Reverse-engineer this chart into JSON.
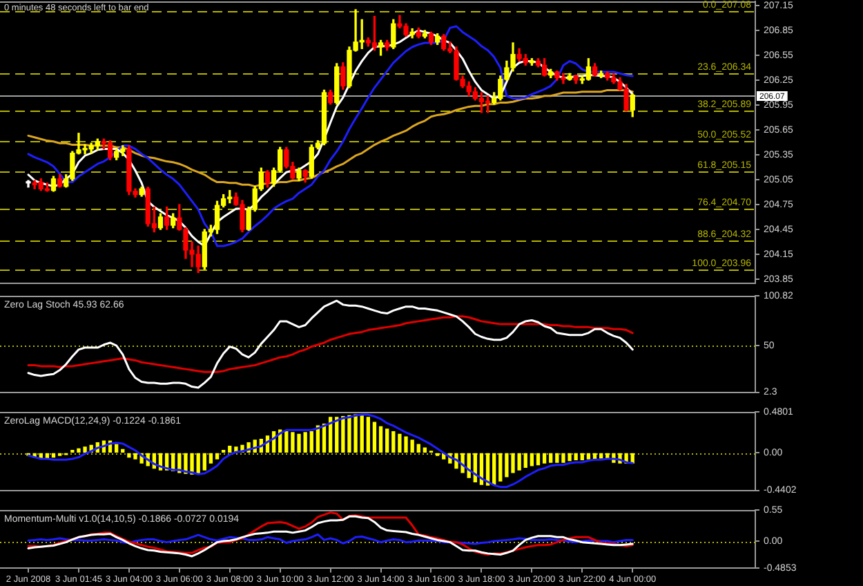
{
  "chart_data": [
    {
      "type": "candlestick",
      "annotations": [
        "0 minutes 48 seconds left to bar end"
      ],
      "categories": [
        null,
        null,
        null,
        null,
        null,
        null,
        null,
        null,
        null,
        null,
        null,
        null,
        null,
        null,
        null,
        null,
        null,
        null,
        null,
        null,
        null,
        null,
        null,
        null,
        null,
        null,
        null,
        null,
        null,
        null,
        null,
        null,
        null,
        null,
        null,
        null,
        null,
        null,
        null,
        null,
        null,
        null,
        null,
        null,
        null,
        null,
        null,
        null,
        null,
        null,
        null,
        null,
        null,
        null,
        null,
        null,
        null,
        null,
        null,
        null,
        null,
        null,
        null,
        null,
        null,
        null,
        null,
        null,
        null,
        null,
        null,
        null,
        null,
        null,
        null,
        null,
        null,
        null,
        null,
        null,
        null,
        null,
        null,
        null,
        null,
        null,
        null,
        null,
        null,
        null,
        null,
        null,
        null,
        null,
        null,
        null,
        null
      ],
      "ohlc": [
        [
          205.01,
          205.04,
          204.96,
          205.01
        ],
        [
          205.01,
          205.04,
          204.94,
          204.99
        ],
        [
          205.02,
          205.06,
          204.92,
          204.94
        ],
        [
          204.94,
          205.01,
          204.91,
          204.92
        ],
        [
          204.92,
          205.09,
          204.91,
          205.06
        ],
        [
          205.06,
          205.11,
          204.96,
          204.97
        ],
        [
          204.97,
          205.11,
          204.96,
          205.06
        ],
        [
          205.06,
          205.39,
          205.04,
          205.37
        ],
        [
          205.37,
          205.61,
          205.36,
          205.41
        ],
        [
          205.41,
          205.47,
          205.36,
          205.42
        ],
        [
          205.42,
          205.49,
          205.37,
          205.46
        ],
        [
          205.46,
          205.54,
          205.41,
          205.51
        ],
        [
          205.51,
          205.54,
          205.42,
          205.49
        ],
        [
          205.49,
          205.52,
          205.29,
          205.32
        ],
        [
          205.32,
          205.42,
          205.29,
          205.39
        ],
        [
          205.39,
          205.46,
          205.34,
          205.42
        ],
        [
          205.42,
          205.46,
          204.87,
          204.91
        ],
        [
          204.91,
          204.94,
          204.84,
          204.87
        ],
        [
          204.87,
          204.96,
          204.85,
          204.94
        ],
        [
          204.94,
          204.96,
          204.49,
          204.52
        ],
        [
          204.52,
          204.72,
          204.42,
          204.47
        ],
        [
          204.47,
          204.64,
          204.45,
          204.6
        ],
        [
          204.6,
          204.72,
          204.45,
          204.5
        ],
        [
          204.5,
          204.64,
          204.47,
          204.59
        ],
        [
          204.59,
          204.75,
          204.44,
          204.45
        ],
        [
          204.45,
          204.47,
          204.1,
          204.2
        ],
        [
          204.2,
          204.3,
          204.0,
          204.15
        ],
        [
          204.15,
          204.25,
          203.93,
          204.0
        ],
        [
          204.0,
          204.45,
          203.97,
          204.42
        ],
        [
          204.42,
          204.5,
          204.37,
          204.45
        ],
        [
          204.45,
          204.79,
          204.4,
          204.74
        ],
        [
          204.74,
          204.87,
          204.72,
          204.82
        ],
        [
          204.82,
          204.92,
          204.77,
          204.84
        ],
        [
          204.84,
          204.89,
          204.74,
          204.75
        ],
        [
          204.75,
          204.8,
          204.42,
          204.45
        ],
        [
          204.45,
          204.72,
          204.44,
          204.69
        ],
        [
          204.69,
          204.97,
          204.67,
          204.94
        ],
        [
          204.94,
          205.19,
          204.92,
          205.14
        ],
        [
          205.14,
          205.16,
          204.96,
          205.01
        ],
        [
          205.01,
          205.19,
          204.97,
          205.16
        ],
        [
          205.16,
          205.44,
          205.14,
          205.41
        ],
        [
          205.41,
          205.44,
          205.19,
          205.21
        ],
        [
          205.21,
          205.26,
          205.06,
          205.07
        ],
        [
          205.07,
          205.19,
          205.04,
          205.16
        ],
        [
          205.16,
          205.17,
          205.02,
          205.09
        ],
        [
          205.09,
          205.47,
          205.07,
          205.44
        ],
        [
          205.44,
          205.52,
          205.42,
          205.49
        ],
        [
          205.49,
          206.13,
          205.47,
          206.1
        ],
        [
          206.1,
          206.13,
          205.96,
          205.98
        ],
        [
          205.98,
          206.45,
          205.96,
          206.41
        ],
        [
          206.41,
          206.46,
          206.14,
          206.18
        ],
        [
          206.18,
          206.65,
          206.16,
          206.61
        ],
        [
          206.61,
          207.1,
          206.6,
          206.71
        ],
        [
          206.71,
          206.98,
          206.63,
          206.73
        ],
        [
          206.73,
          206.76,
          206.66,
          206.7
        ],
        [
          206.7,
          207.02,
          206.61,
          206.65
        ],
        [
          206.65,
          206.73,
          206.55,
          206.7
        ],
        [
          206.7,
          206.73,
          206.61,
          206.65
        ],
        [
          206.65,
          206.98,
          206.63,
          206.93
        ],
        [
          206.93,
          207.03,
          206.88,
          206.9
        ],
        [
          206.9,
          206.93,
          206.78,
          206.8
        ],
        [
          206.8,
          206.87,
          206.76,
          206.83
        ],
        [
          206.83,
          206.88,
          206.76,
          206.78
        ],
        [
          206.78,
          206.85,
          206.76,
          206.81
        ],
        [
          206.81,
          206.83,
          206.68,
          206.71
        ],
        [
          206.71,
          206.81,
          206.68,
          206.78
        ],
        [
          206.78,
          206.8,
          206.61,
          206.63
        ],
        [
          206.63,
          206.71,
          206.58,
          206.6
        ],
        [
          206.6,
          206.65,
          206.25,
          206.26
        ],
        [
          206.26,
          206.3,
          206.16,
          206.18
        ],
        [
          206.18,
          206.23,
          206.06,
          206.11
        ],
        [
          206.11,
          206.16,
          206.01,
          206.03
        ],
        [
          206.03,
          206.1,
          205.86,
          205.99
        ],
        [
          205.99,
          206.06,
          205.86,
          205.98
        ],
        [
          205.98,
          206.1,
          205.96,
          206.03
        ],
        [
          206.03,
          206.3,
          206.01,
          206.26
        ],
        [
          206.26,
          206.48,
          206.25,
          206.4
        ],
        [
          206.4,
          206.7,
          206.36,
          206.56
        ],
        [
          206.56,
          206.63,
          206.48,
          206.51
        ],
        [
          206.51,
          206.56,
          206.43,
          206.46
        ],
        [
          206.46,
          206.51,
          206.43,
          206.48
        ],
        [
          206.48,
          206.51,
          206.41,
          206.43
        ],
        [
          206.43,
          206.51,
          206.3,
          206.31
        ],
        [
          206.31,
          206.38,
          206.28,
          206.35
        ],
        [
          206.35,
          206.36,
          206.25,
          206.28
        ],
        [
          206.28,
          206.33,
          206.21,
          206.26
        ],
        [
          206.26,
          206.33,
          206.25,
          206.3
        ],
        [
          206.3,
          206.31,
          206.21,
          206.25
        ],
        [
          206.25,
          206.3,
          206.21,
          206.26
        ],
        [
          206.26,
          206.51,
          206.25,
          206.41
        ],
        [
          206.41,
          206.45,
          206.3,
          206.31
        ],
        [
          206.31,
          206.36,
          206.28,
          206.33
        ],
        [
          206.33,
          206.35,
          206.25,
          206.28
        ],
        [
          206.28,
          206.33,
          206.21,
          206.23
        ],
        [
          206.23,
          206.28,
          206.13,
          206.14
        ],
        [
          206.14,
          206.2,
          205.88,
          205.89
        ],
        [
          205.89,
          206.08,
          205.81,
          206.07
        ]
      ],
      "colors": [
        "#ffffff",
        "#ff0000",
        "#ff0000",
        "#ff0000",
        "#ffff00",
        "#ff0000",
        "#ffff00",
        "#ffff00",
        "#ffff00",
        "#ffff00",
        "#ffff00",
        "#ffff00",
        "#ff0000",
        "#ff0000",
        "#ffff00",
        "#ffff00",
        "#ff0000",
        "#ff0000",
        "#ffff00",
        "#ff0000",
        "#ff0000",
        "#ffff00",
        "#ff0000",
        "#ffff00",
        "#ff0000",
        "#ff0000",
        "#ff0000",
        "#ff0000",
        "#ffff00",
        "#ffff00",
        "#ffff00",
        "#ffff00",
        "#ffff00",
        "#ff0000",
        "#ff0000",
        "#ffff00",
        "#ffff00",
        "#ffff00",
        "#ff0000",
        "#ffff00",
        "#ffff00",
        "#ff0000",
        "#ff0000",
        "#ffff00",
        "#ff0000",
        "#ffff00",
        "#ffff00",
        "#ffff00",
        "#ff0000",
        "#ffff00",
        "#ff0000",
        "#ffff00",
        "#ffff00",
        "#ffff00",
        "#ff0000",
        "#ff0000",
        "#ffff00",
        "#ff0000",
        "#ffff00",
        "#ff0000",
        "#ff0000",
        "#ffff00",
        "#ff0000",
        "#ffff00",
        "#ff0000",
        "#ffff00",
        "#ff0000",
        "#ff0000",
        "#ff0000",
        "#ff0000",
        "#ff0000",
        "#ff0000",
        "#ff0000",
        "#ff0000",
        "#ffff00",
        "#ffff00",
        "#ffff00",
        "#ffff00",
        "#ff0000",
        "#ff0000",
        "#ffff00",
        "#ff0000",
        "#ff0000",
        "#ffff00",
        "#ff0000",
        "#ff0000",
        "#ffff00",
        "#ff0000",
        "#ffff00",
        "#ffff00",
        "#ff0000",
        "#ffff00",
        "#ff0000",
        "#ff0000",
        "#ff0000",
        "#ff0000",
        "#ffff00"
      ],
      "series": [
        {
          "type": "line",
          "color": "#ffffff",
          "values": [
            205.11,
            205.04,
            205.01,
            204.99,
            204.97,
            204.99,
            205.06,
            205.12,
            205.26,
            205.34,
            205.37,
            205.41,
            205.42,
            205.42,
            205.42,
            205.37,
            205.29,
            205.16,
            205.01,
            204.79,
            204.72,
            204.67,
            204.62,
            204.59,
            204.55,
            204.47,
            204.37,
            204.3,
            204.25,
            204.4,
            204.54,
            204.6,
            204.65,
            204.7,
            204.7,
            204.69,
            204.75,
            204.84,
            204.91,
            204.99,
            205.07,
            205.14,
            205.16,
            205.17,
            205.22,
            205.27,
            205.36,
            205.54,
            205.74,
            205.93,
            206.04,
            206.2,
            206.36,
            206.48,
            206.58,
            206.65,
            206.66,
            206.66,
            206.68,
            206.71,
            206.76,
            206.81,
            206.85,
            206.83,
            206.81,
            206.78,
            206.73,
            206.7,
            206.61,
            206.51,
            206.36,
            206.23,
            206.13,
            206.08,
            206.03,
            206.06,
            206.23,
            206.4,
            206.46,
            206.48,
            206.48,
            206.46,
            206.4,
            206.35,
            206.3,
            206.28,
            206.28,
            206.3,
            206.3,
            206.31,
            206.31,
            206.3,
            206.3,
            206.28,
            206.23,
            206.16,
            206.08
          ]
        },
        {
          "type": "line",
          "color": "#1e1eff",
          "values": [
            205.36,
            205.32,
            205.29,
            205.26,
            205.21,
            205.12,
            205.02,
            205.02,
            205.09,
            205.14,
            205.19,
            205.24,
            205.27,
            205.32,
            205.39,
            205.46,
            205.46,
            205.42,
            205.36,
            205.31,
            205.24,
            205.17,
            205.11,
            205.06,
            204.99,
            204.89,
            204.79,
            204.69,
            204.52,
            204.42,
            204.25,
            204.25,
            204.27,
            204.3,
            204.34,
            204.42,
            204.49,
            204.55,
            204.62,
            204.7,
            204.75,
            204.79,
            204.82,
            204.89,
            204.94,
            204.99,
            205.09,
            205.16,
            205.29,
            205.39,
            205.51,
            205.66,
            205.79,
            205.91,
            206.04,
            206.16,
            206.26,
            206.36,
            206.46,
            206.53,
            206.6,
            206.65,
            206.68,
            206.7,
            206.7,
            206.7,
            206.73,
            206.88,
            206.9,
            206.83,
            206.78,
            206.73,
            206.66,
            206.61,
            206.53,
            206.4,
            206.06,
            206.03,
            206.03,
            206.04,
            206.08,
            206.11,
            206.14,
            206.18,
            206.26,
            206.43,
            206.48,
            206.45,
            206.38,
            206.35,
            206.35,
            206.35,
            206.35,
            206.35,
            206.33,
            206.31,
            206.3
          ]
        },
        {
          "type": "line",
          "color": "#daa520",
          "values": [
            205.58,
            205.56,
            205.54,
            205.52,
            205.51,
            205.49,
            205.49,
            205.47,
            205.47,
            205.47,
            205.46,
            205.46,
            205.46,
            205.46,
            205.44,
            205.44,
            205.41,
            205.37,
            205.34,
            205.32,
            205.31,
            205.29,
            205.27,
            205.26,
            205.24,
            205.21,
            205.17,
            205.14,
            205.11,
            205.06,
            205.02,
            205.02,
            205.01,
            205.01,
            204.99,
            204.99,
            204.97,
            204.99,
            205.01,
            205.01,
            205.02,
            205.02,
            205.04,
            205.04,
            205.06,
            205.07,
            205.11,
            205.14,
            205.17,
            205.21,
            205.24,
            205.29,
            205.34,
            205.37,
            205.42,
            205.47,
            205.51,
            205.54,
            205.58,
            205.61,
            205.64,
            205.69,
            205.73,
            205.76,
            205.81,
            205.83,
            205.84,
            205.86,
            205.89,
            205.91,
            205.93,
            205.94,
            205.94,
            205.96,
            205.96,
            205.98,
            205.98,
            205.99,
            206.01,
            206.03,
            206.03,
            206.04,
            206.06,
            206.06,
            206.08,
            206.1,
            206.1,
            206.1,
            206.11,
            206.11,
            206.11,
            206.11,
            206.13,
            206.13,
            206.13,
            206.13,
            206.11
          ]
        }
      ],
      "ylim": [
        203.8,
        207.2
      ],
      "yticks": [
        207.15,
        206.85,
        206.55,
        206.25,
        205.95,
        205.65,
        205.35,
        205.05,
        204.75,
        204.45,
        204.15,
        203.85
      ],
      "ref_lines": [
        {
          "axis": "y",
          "value": 207.08,
          "label": "0.0_207.08",
          "color": "#b4b400",
          "line_style": "dashed"
        },
        {
          "axis": "y",
          "value": 206.34,
          "label": "23.6_206.34",
          "color": "#b4b400",
          "line_style": "dashed"
        },
        {
          "axis": "y",
          "value": 205.89,
          "label": "38.2_205.89",
          "color": "#b4b400",
          "line_style": "dashed"
        },
        {
          "axis": "y",
          "value": 205.52,
          "label": "50.0_205.52",
          "color": "#b4b400",
          "line_style": "dashed"
        },
        {
          "axis": "y",
          "value": 205.15,
          "label": "61.8_205.15",
          "color": "#b4b400",
          "line_style": "dashed"
        },
        {
          "axis": "y",
          "value": 204.7,
          "label": "76.4_204.70",
          "color": "#b4b400",
          "line_style": "dashed"
        },
        {
          "axis": "y",
          "value": 204.32,
          "label": "88.6_204.32",
          "color": "#b4b400",
          "line_style": "dashed"
        },
        {
          "axis": "y",
          "value": 203.96,
          "label": "100.0_203.96",
          "color": "#b4b400",
          "line_style": "dashed"
        },
        {
          "axis": "y",
          "value": 206.07,
          "label": "206.07",
          "color": "#a0a0a0",
          "line_style": "solid"
        }
      ],
      "tick_labels": "y"
    },
    {
      "type": "line",
      "title": "Zero Lag Stoch 45.93 62.66",
      "categories": [
        null,
        null,
        null,
        null,
        null,
        null,
        null,
        null,
        null,
        null,
        null,
        null,
        null,
        null,
        null,
        null,
        null,
        null,
        null,
        null,
        null,
        null,
        null,
        null,
        null,
        null,
        null,
        null,
        null,
        null,
        null,
        null,
        null,
        null,
        null,
        null,
        null,
        null,
        null,
        null,
        null,
        null,
        null,
        null,
        null,
        null,
        null,
        null,
        null,
        null,
        null,
        null,
        null,
        null,
        null,
        null,
        null,
        null,
        null,
        null,
        null,
        null,
        null,
        null,
        null,
        null,
        null,
        null,
        null,
        null,
        null,
        null,
        null,
        null,
        null,
        null,
        null,
        null,
        null,
        null,
        null,
        null,
        null,
        null,
        null,
        null,
        null,
        null,
        null,
        null,
        null,
        null,
        null,
        null,
        null,
        null,
        null
      ],
      "series": [
        {
          "color": "#ffffff",
          "values": [
            22,
            20,
            19,
            20,
            21,
            25,
            31,
            39,
            46,
            48,
            48,
            48,
            51,
            53,
            50,
            41,
            26,
            17,
            13,
            12,
            12,
            11,
            11,
            12,
            12,
            11,
            8,
            7,
            12,
            18,
            32,
            42,
            49,
            47,
            41,
            38,
            43,
            52,
            59,
            66,
            75,
            75,
            72,
            69,
            71,
            78,
            84,
            90,
            93,
            96,
            92,
            91,
            91,
            90,
            88,
            86,
            84,
            83,
            86,
            88,
            90,
            90,
            88,
            88,
            87,
            86,
            84,
            82,
            80,
            75,
            69,
            62,
            59,
            57,
            56,
            56,
            58,
            64,
            72,
            75,
            76,
            74,
            70,
            68,
            63,
            62,
            61,
            61,
            61,
            63,
            67,
            67,
            63,
            60,
            58,
            53,
            46
          ]
        },
        {
          "color": "#e00000",
          "values": [
            30,
            30,
            29,
            29,
            29,
            28,
            29,
            29,
            30,
            31,
            32,
            33,
            34,
            35,
            36,
            37,
            36,
            35,
            33,
            32,
            31,
            30,
            29,
            28,
            27,
            26,
            25,
            24,
            23,
            23,
            23,
            24,
            26,
            27,
            28,
            29,
            30,
            32,
            34,
            36,
            38,
            39,
            41,
            44,
            46,
            49,
            51,
            53,
            56,
            58,
            60,
            62,
            63,
            64,
            66,
            67,
            68,
            69,
            70,
            71,
            73,
            74,
            75,
            76,
            77,
            78,
            79,
            79,
            80,
            80,
            79,
            77,
            75,
            74,
            73,
            72,
            72,
            72,
            72,
            72,
            72,
            72,
            72,
            71,
            71,
            70,
            70,
            69,
            69,
            69,
            68,
            68,
            68,
            67,
            67,
            66,
            63
          ]
        }
      ],
      "ylim": [
        2.3,
        100.82
      ],
      "yticks": [
        100.82,
        50,
        2.3
      ],
      "ref_lines": [
        {
          "axis": "y",
          "value": 50,
          "color": "#b4b400",
          "line_style": "dotted"
        }
      ],
      "tick_labels": "y"
    },
    {
      "type": "bar",
      "title": "ZeroLag MACD(12,24,9) -0.1224 -0.1861",
      "categories": [
        null,
        null,
        null,
        null,
        null,
        null,
        null,
        null,
        null,
        null,
        null,
        null,
        null,
        null,
        null,
        null,
        null,
        null,
        null,
        null,
        null,
        null,
        null,
        null,
        null,
        null,
        null,
        null,
        null,
        null,
        null,
        null,
        null,
        null,
        null,
        null,
        null,
        null,
        null,
        null,
        null,
        null,
        null,
        null,
        null,
        null,
        null,
        null,
        null,
        null,
        null,
        null,
        null,
        null,
        null,
        null,
        null,
        null,
        null,
        null,
        null,
        null,
        null,
        null,
        null,
        null,
        null,
        null,
        null,
        null,
        null,
        null,
        null,
        null,
        null,
        null,
        null,
        null,
        null,
        null,
        null,
        null,
        null,
        null,
        null,
        null,
        null,
        null,
        null,
        null,
        null,
        null,
        null,
        null,
        null,
        null,
        null
      ],
      "series": [
        {
          "color": "#ffff00",
          "values": [
            -0.03,
            -0.05,
            -0.06,
            -0.06,
            -0.05,
            -0.03,
            -0.02,
            0.03,
            0.05,
            0.07,
            0.09,
            0.12,
            0.14,
            0.14,
            0.1,
            0.04,
            -0.05,
            -0.07,
            -0.12,
            -0.15,
            -0.18,
            -0.2,
            -0.2,
            -0.21,
            -0.23,
            -0.24,
            -0.25,
            -0.24,
            -0.2,
            -0.12,
            -0.07,
            0.03,
            0.08,
            0.07,
            0.09,
            0.12,
            0.15,
            0.16,
            0.2,
            0.25,
            0.27,
            0.25,
            0.24,
            0.22,
            0.24,
            0.25,
            0.32,
            0.34,
            0.42,
            0.42,
            0.43,
            0.44,
            0.45,
            0.45,
            0.42,
            0.36,
            0.31,
            0.28,
            0.25,
            0.22,
            0.19,
            0.15,
            0.1,
            0.06,
            0.02,
            -0.03,
            -0.07,
            -0.12,
            -0.18,
            -0.23,
            -0.29,
            -0.34,
            -0.37,
            -0.38,
            -0.37,
            -0.33,
            -0.28,
            -0.23,
            -0.2,
            -0.17,
            -0.15,
            -0.14,
            -0.12,
            -0.11,
            -0.11,
            -0.11,
            -0.09,
            -0.08,
            -0.08,
            -0.07,
            -0.07,
            -0.06,
            -0.07,
            -0.11,
            -0.12,
            -0.12,
            -0.12
          ]
        },
        {
          "type": "line",
          "color": "#1e1eff",
          "values": [
            -0.03,
            -0.05,
            -0.07,
            -0.07,
            -0.08,
            -0.08,
            -0.08,
            -0.07,
            -0.05,
            -0.01,
            0.02,
            0.06,
            0.08,
            0.11,
            0.12,
            0.11,
            0.07,
            0.03,
            -0.03,
            -0.08,
            -0.13,
            -0.16,
            -0.18,
            -0.2,
            -0.2,
            -0.22,
            -0.23,
            -0.25,
            -0.24,
            -0.2,
            -0.15,
            -0.07,
            -0.02,
            0.01,
            0.02,
            0.04,
            0.06,
            0.08,
            0.13,
            0.17,
            0.23,
            0.27,
            0.27,
            0.27,
            0.27,
            0.27,
            0.29,
            0.32,
            0.35,
            0.38,
            0.41,
            0.42,
            0.44,
            0.45,
            0.45,
            0.43,
            0.4,
            0.35,
            0.32,
            0.28,
            0.24,
            0.21,
            0.18,
            0.14,
            0.1,
            0.05,
            0.0,
            -0.05,
            -0.08,
            -0.14,
            -0.2,
            -0.25,
            -0.3,
            -0.34,
            -0.38,
            -0.4,
            -0.4,
            -0.37,
            -0.33,
            -0.28,
            -0.24,
            -0.2,
            -0.18,
            -0.15,
            -0.14,
            -0.14,
            -0.12,
            -0.11,
            -0.11,
            -0.09,
            -0.08,
            -0.08,
            -0.07,
            -0.07,
            -0.08,
            -0.11,
            -0.12
          ]
        }
      ],
      "ylim": [
        -0.4402,
        0.4801
      ],
      "yticks": [
        0.4801,
        {
          "value": 0,
          "label": "0.00"
        },
        -0.4402
      ],
      "ref_lines": [
        {
          "axis": "y",
          "value": 0,
          "color": "#b4b400",
          "line_style": "dotted"
        }
      ],
      "tick_labels": "y"
    },
    {
      "type": "line",
      "title": "Momentum-Multi v1.0(14,10,5) -0.1866 -0.0727 0.0194",
      "categories": [
        "2 Jun 2008",
        null,
        null,
        null,
        null,
        null,
        null,
        null,
        "3 Jun 01:45",
        null,
        null,
        null,
        null,
        null,
        null,
        null,
        "3 Jun 04:00",
        null,
        null,
        null,
        null,
        null,
        null,
        null,
        "3 Jun 06:00",
        null,
        null,
        null,
        null,
        null,
        null,
        null,
        "3 Jun 08:00",
        null,
        null,
        null,
        null,
        null,
        null,
        null,
        "3 Jun 10:00",
        null,
        null,
        null,
        null,
        null,
        null,
        null,
        "3 Jun 12:00",
        null,
        null,
        null,
        null,
        null,
        null,
        null,
        "3 Jun 14:00",
        null,
        null,
        null,
        null,
        null,
        null,
        null,
        "3 Jun 16:00",
        null,
        null,
        null,
        null,
        null,
        null,
        null,
        "3 Jun 18:00",
        null,
        null,
        null,
        null,
        null,
        null,
        null,
        "3 Jun 20:00",
        null,
        null,
        null,
        null,
        null,
        null,
        null,
        "3 Jun 22:00",
        null,
        null,
        null,
        null,
        null,
        null,
        null,
        "4 Jun 00:00"
      ],
      "series": [
        {
          "color": "#ffffff",
          "values": [
            -0.13,
            -0.11,
            -0.1,
            -0.09,
            -0.08,
            -0.05,
            -0.02,
            0.03,
            0.07,
            0.09,
            0.11,
            0.12,
            0.12,
            0.13,
            0.07,
            0.02,
            -0.04,
            -0.09,
            -0.13,
            -0.16,
            -0.17,
            -0.19,
            -0.2,
            -0.21,
            -0.22,
            -0.24,
            -0.27,
            -0.22,
            -0.16,
            -0.09,
            -0.02,
            0.0,
            0.01,
            0.03,
            0.07,
            0.1,
            0.13,
            0.14,
            0.15,
            0.17,
            0.17,
            0.17,
            0.15,
            0.17,
            0.19,
            0.25,
            0.32,
            0.35,
            0.37,
            0.37,
            0.38,
            0.44,
            0.44,
            0.42,
            0.41,
            0.34,
            0.24,
            0.19,
            0.18,
            0.17,
            0.16,
            0.13,
            0.11,
            0.08,
            0.05,
            0.02,
            0.0,
            -0.02,
            -0.09,
            -0.16,
            -0.17,
            -0.17,
            -0.2,
            -0.22,
            -0.23,
            -0.24,
            -0.21,
            -0.17,
            -0.07,
            0.02,
            0.06,
            0.09,
            0.09,
            0.09,
            0.07,
            0.07,
            0.03,
            0.01,
            -0.02,
            -0.03,
            -0.04,
            -0.05,
            -0.06,
            -0.07,
            -0.07,
            -0.06,
            -0.05
          ]
        },
        {
          "color": "#e00000",
          "values": [
            -0.09,
            -0.09,
            -0.1,
            -0.09,
            -0.07,
            -0.03,
            0.0,
            0.03,
            0.07,
            0.09,
            0.12,
            0.13,
            0.15,
            0.15,
            0.09,
            0.04,
            -0.01,
            -0.04,
            -0.07,
            -0.1,
            -0.12,
            -0.15,
            -0.18,
            -0.19,
            -0.2,
            -0.21,
            -0.21,
            -0.16,
            -0.12,
            -0.1,
            -0.03,
            -0.02,
            -0.02,
            0.02,
            0.05,
            0.12,
            0.19,
            0.26,
            0.32,
            0.33,
            0.34,
            0.32,
            0.27,
            0.22,
            0.26,
            0.33,
            0.43,
            0.47,
            0.51,
            0.49,
            0.38,
            0.45,
            0.46,
            0.44,
            0.42,
            0.42,
            0.42,
            0.42,
            0.42,
            0.42,
            0.42,
            0.28,
            0.12,
            0.1,
            0.07,
            0.05,
            0.02,
            -0.01,
            -0.02,
            -0.06,
            -0.13,
            -0.19,
            -0.22,
            -0.24,
            -0.22,
            -0.22,
            -0.2,
            -0.17,
            -0.14,
            -0.11,
            -0.09,
            -0.07,
            -0.07,
            -0.06,
            -0.02,
            0.02,
            0.05,
            0.07,
            0.07,
            0.07,
            0.02,
            -0.03,
            -0.04,
            -0.05,
            -0.07,
            -0.09,
            -0.07
          ]
        },
        {
          "color": "#1e1eff",
          "values": [
            0.01,
            0.02,
            0.03,
            0.02,
            0.03,
            0.05,
            0.03,
            0.02,
            0.02,
            0.01,
            0.01,
            0.02,
            0.03,
            0.02,
            0.01,
            -0.02,
            -0.03,
            0.0,
            0.02,
            0.03,
            0.03,
            0.0,
            -0.02,
            0.0,
            0.02,
            0.03,
            0.07,
            0.11,
            0.07,
            0.03,
            0.01,
            0.04,
            0.07,
            0.06,
            0.05,
            0.02,
            0.02,
            0.03,
            0.07,
            0.05,
            0.03,
            -0.03,
            0.0,
            0.02,
            0.03,
            0.07,
            0.12,
            0.02,
            0.05,
            0.02,
            -0.04,
            0.0,
            0.07,
            0.08,
            0.05,
            0.02,
            -0.02,
            0.01,
            0.03,
            0.02,
            -0.02,
            -0.01,
            0.01,
            0.01,
            0.01,
            0.0,
            -0.02,
            -0.02,
            -0.02,
            -0.03,
            -0.04,
            -0.05,
            -0.03,
            -0.02,
            0.0,
            0.01,
            0.02,
            0.03,
            0.05,
            0.04,
            0.02,
            0.02,
            0.02,
            0.03,
            0.02,
            0.01,
            -0.01,
            -0.02,
            0.0,
            0.01,
            0.01,
            0.0,
            0.0,
            -0.02,
            0.0,
            0.02,
            0.02
          ]
        }
      ],
      "ylim": [
        -0.4853,
        0.55
      ],
      "yticks": [
        0.55,
        {
          "value": 0,
          "label": "0.00"
        },
        -0.4853
      ],
      "ref_lines": [
        {
          "axis": "y",
          "value": 0,
          "color": "#b4b400",
          "line_style": "dotted"
        }
      ]
    }
  ]
}
